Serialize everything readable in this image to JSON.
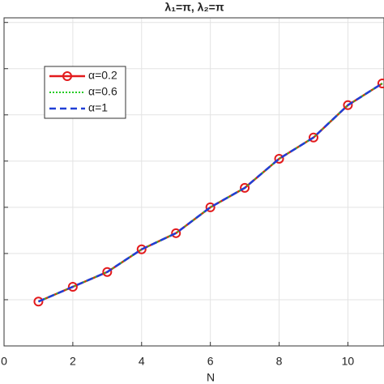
{
  "chart_data": {
    "type": "line",
    "title": "λ₁=π, λ₂=π",
    "xlabel": "N",
    "x": [
      1,
      2,
      3,
      4,
      5,
      6,
      7,
      8,
      9,
      10,
      11
    ],
    "series": [
      {
        "name": "α=0.2",
        "color": "#e31a1c",
        "style": "solid-circle",
        "values": [
          0.96,
          1.28,
          1.6,
          2.09,
          2.44,
          3.0,
          3.42,
          4.05,
          4.51,
          5.21,
          5.68
        ]
      },
      {
        "name": "α=0.6",
        "color": "#22cc22",
        "style": "dotted",
        "values": [
          0.96,
          1.28,
          1.6,
          2.09,
          2.44,
          3.0,
          3.42,
          4.05,
          4.51,
          5.21,
          5.68
        ]
      },
      {
        "name": "α=1",
        "color": "#1f3fd6",
        "style": "dashed",
        "values": [
          0.96,
          1.28,
          1.6,
          2.09,
          2.44,
          3.0,
          3.42,
          4.05,
          4.51,
          5.21,
          5.68
        ]
      }
    ],
    "xlim": [
      0,
      11.05
    ],
    "xticks": [
      0,
      2,
      4,
      6,
      8,
      10
    ],
    "ylim": [
      0,
      7.1
    ],
    "yticks": [
      0,
      1,
      2,
      3,
      4,
      5,
      6,
      7
    ],
    "grid": true,
    "legend": "upper left"
  }
}
